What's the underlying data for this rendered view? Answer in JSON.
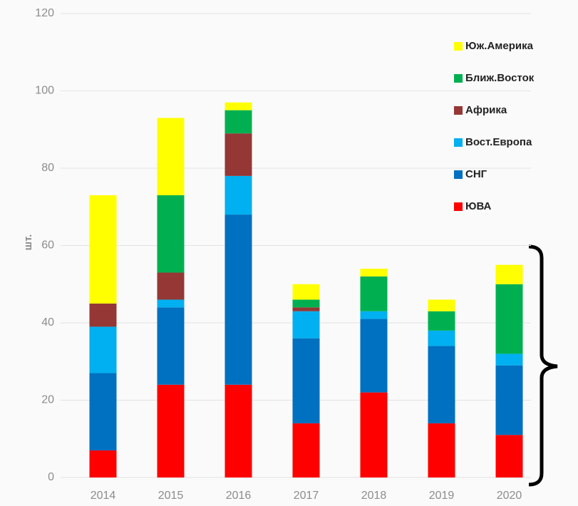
{
  "chart_data": {
    "type": "bar",
    "stacked": true,
    "y_label": "шт.",
    "categories": [
      "2014",
      "2015",
      "2016",
      "2017",
      "2018",
      "2019",
      "2020"
    ],
    "series": [
      {
        "name": "ЮВА",
        "color": "#ff0000",
        "values": [
          7,
          24,
          24,
          14,
          22,
          14,
          11
        ]
      },
      {
        "name": "СНГ",
        "color": "#0070c0",
        "values": [
          20,
          20,
          44,
          22,
          19,
          20,
          18
        ]
      },
      {
        "name": "Вост.Европа",
        "color": "#00b0f0",
        "values": [
          12,
          2,
          10,
          7,
          2,
          4,
          3
        ]
      },
      {
        "name": "Африка",
        "color": "#953735",
        "values": [
          6,
          7,
          11,
          1,
          0,
          0,
          0
        ]
      },
      {
        "name": "Ближ.Восток",
        "color": "#00b050",
        "values": [
          0,
          20,
          6,
          2,
          9,
          5,
          18
        ]
      },
      {
        "name": "Юж.Америка",
        "color": "#ffff00",
        "values": [
          28,
          20,
          2,
          4,
          2,
          3,
          5
        ]
      }
    ],
    "ylim": [
      0,
      120
    ],
    "yticks": [
      0,
      20,
      40,
      60,
      80,
      100,
      120
    ],
    "grid": true,
    "legend": "right"
  }
}
